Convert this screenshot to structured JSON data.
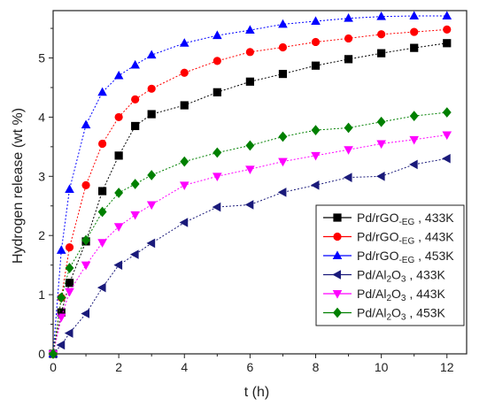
{
  "chart_data": {
    "type": "line",
    "xlabel": "t (h)",
    "ylabel": "Hydrogen release (wt %)",
    "xlim": [
      0,
      12.6
    ],
    "ylim": [
      0,
      5.8
    ],
    "xticks": [
      0,
      2,
      4,
      6,
      8,
      10,
      12
    ],
    "yticks": [
      0,
      1,
      2,
      3,
      4,
      5
    ],
    "grid": false,
    "legend_position": "bottom-right",
    "series": [
      {
        "name": "Pd/rGO-EG , 433K",
        "legend": {
          "base": "Pd/rGO",
          "sub": "-EG",
          "rest": " , 433K"
        },
        "color": "#000000",
        "marker": "square",
        "x": [
          0,
          0.25,
          0.5,
          1,
          1.5,
          2,
          2.5,
          3,
          4,
          5,
          6,
          7,
          8,
          9,
          10,
          11,
          12
        ],
        "y": [
          0,
          0.7,
          1.2,
          1.9,
          2.75,
          3.35,
          3.85,
          4.05,
          4.2,
          4.42,
          4.6,
          4.73,
          4.87,
          4.98,
          5.08,
          5.17,
          5.25
        ]
      },
      {
        "name": "Pd/rGO-EG , 443K",
        "legend": {
          "base": "Pd/rGO",
          "sub": "-EG",
          "rest": " , 443K"
        },
        "color": "#ff0000",
        "marker": "circle",
        "x": [
          0,
          0.25,
          0.5,
          1,
          1.5,
          2,
          2.5,
          3,
          4,
          5,
          6,
          7,
          8,
          9,
          10,
          11,
          12
        ],
        "y": [
          0,
          0.95,
          1.8,
          2.85,
          3.55,
          4.0,
          4.3,
          4.48,
          4.75,
          4.95,
          5.1,
          5.18,
          5.27,
          5.33,
          5.4,
          5.44,
          5.48
        ]
      },
      {
        "name": "Pd/rGO-EG , 453K",
        "legend": {
          "base": "Pd/rGO",
          "sub": "-EG",
          "rest": " , 453K"
        },
        "color": "#0000ff",
        "marker": "triangle-up",
        "x": [
          0,
          0.25,
          0.5,
          1,
          1.5,
          2,
          2.5,
          3,
          4,
          5,
          6,
          7,
          8,
          9,
          10,
          11,
          12
        ],
        "y": [
          0,
          1.75,
          2.78,
          3.87,
          4.42,
          4.7,
          4.88,
          5.05,
          5.25,
          5.38,
          5.47,
          5.57,
          5.62,
          5.67,
          5.7,
          5.71,
          5.71
        ]
      },
      {
        "name": "Pd/Al2O3 , 433K",
        "legend": {
          "base": "Pd/Al",
          "sub": "2",
          "mid": "O",
          "sub2": "3",
          "rest": " , 433K"
        },
        "color": "#1a1a7a",
        "marker": "triangle-left",
        "x": [
          0,
          0.25,
          0.5,
          1,
          1.5,
          2,
          2.5,
          3,
          4,
          5,
          6,
          7,
          8,
          9,
          10,
          11,
          12
        ],
        "y": [
          0,
          0.15,
          0.35,
          0.68,
          1.12,
          1.5,
          1.68,
          1.87,
          2.22,
          2.48,
          2.52,
          2.73,
          2.85,
          2.98,
          3.0,
          3.2,
          3.3
        ]
      },
      {
        "name": "Pd/Al2O3 , 443K",
        "legend": {
          "base": "Pd/Al",
          "sub": "2",
          "mid": "O",
          "sub2": "3",
          "rest": " , 443K"
        },
        "color": "#ff00ff",
        "marker": "triangle-down",
        "x": [
          0,
          0.25,
          0.5,
          1,
          1.5,
          2,
          2.5,
          3,
          4,
          5,
          6,
          7,
          8,
          9,
          10,
          11,
          12
        ],
        "y": [
          0,
          0.62,
          1.05,
          1.5,
          1.88,
          2.15,
          2.35,
          2.52,
          2.85,
          3.0,
          3.12,
          3.25,
          3.35,
          3.45,
          3.55,
          3.62,
          3.7
        ]
      },
      {
        "name": "Pd/Al2O3 , 453K",
        "legend": {
          "base": "Pd/Al",
          "sub": "2",
          "mid": "O",
          "sub2": "3",
          "rest": " , 453K"
        },
        "color": "#008000",
        "marker": "diamond",
        "x": [
          0,
          0.25,
          0.5,
          1,
          1.5,
          2,
          2.5,
          3,
          4,
          5,
          6,
          7,
          8,
          9,
          10,
          11,
          12
        ],
        "y": [
          0,
          0.95,
          1.45,
          1.92,
          2.4,
          2.72,
          2.87,
          3.02,
          3.25,
          3.4,
          3.52,
          3.67,
          3.78,
          3.82,
          3.92,
          4.02,
          4.08
        ]
      }
    ]
  }
}
